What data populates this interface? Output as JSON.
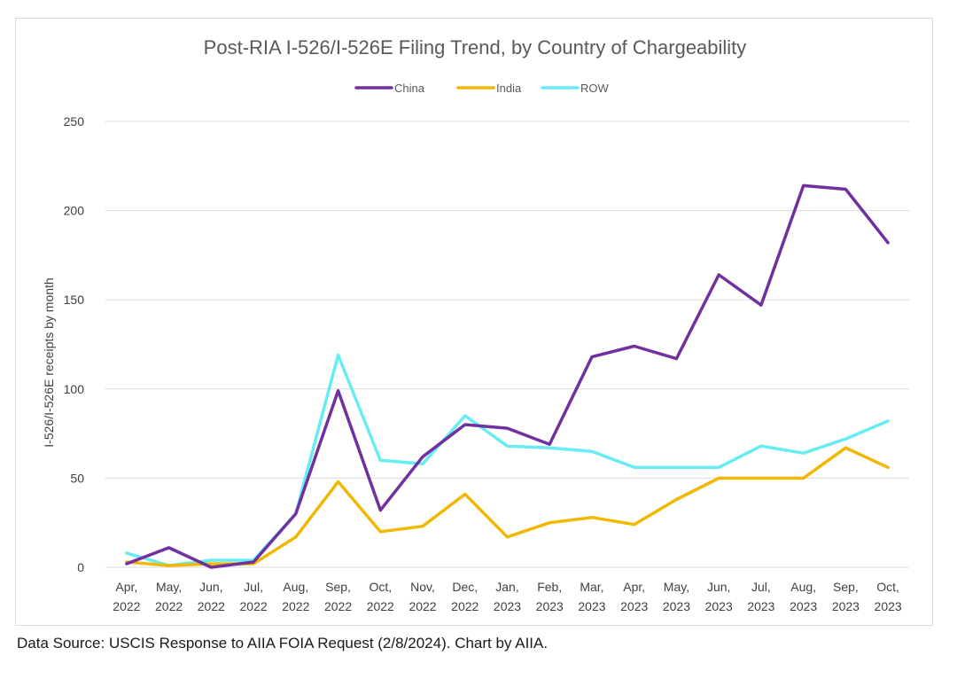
{
  "chart_data": {
    "type": "line",
    "title": "Post-RIA I-526/I-526E Filing Trend, by Country of Chargeability",
    "xlabel": "",
    "ylabel": "I-526/I-526E receipts by month",
    "ylim": [
      0,
      250
    ],
    "yticks": [
      0,
      50,
      100,
      150,
      200,
      250
    ],
    "grid": true,
    "legend_position": "top-center",
    "categories": [
      [
        "Apr,",
        "2022"
      ],
      [
        "May,",
        "2022"
      ],
      [
        "Jun,",
        "2022"
      ],
      [
        "Jul,",
        "2022"
      ],
      [
        "Aug,",
        "2022"
      ],
      [
        "Sep,",
        "2022"
      ],
      [
        "Oct,",
        "2022"
      ],
      [
        "Nov,",
        "2022"
      ],
      [
        "Dec,",
        "2022"
      ],
      [
        "Jan,",
        "2023"
      ],
      [
        "Feb,",
        "2023"
      ],
      [
        "Mar,",
        "2023"
      ],
      [
        "Apr,",
        "2023"
      ],
      [
        "May,",
        "2023"
      ],
      [
        "Jun,",
        "2023"
      ],
      [
        "Jul,",
        "2023"
      ],
      [
        "Aug,",
        "2023"
      ],
      [
        "Sep,",
        "2023"
      ],
      [
        "Oct,",
        "2023"
      ]
    ],
    "series": [
      {
        "name": "China",
        "color": "#7030a0",
        "values": [
          2,
          11,
          0,
          3,
          30,
          99,
          32,
          62,
          80,
          78,
          69,
          118,
          124,
          117,
          164,
          147,
          214,
          212,
          182
        ]
      },
      {
        "name": "India",
        "color": "#f0b800",
        "values": [
          3,
          1,
          2,
          2,
          17,
          48,
          20,
          23,
          41,
          17,
          25,
          28,
          24,
          38,
          50,
          50,
          50,
          67,
          56
        ]
      },
      {
        "name": "ROW",
        "color": "#66ecf2",
        "values": [
          8,
          1,
          4,
          4,
          30,
          119,
          60,
          58,
          85,
          68,
          67,
          65,
          56,
          56,
          56,
          68,
          64,
          72,
          82
        ]
      }
    ]
  },
  "footer": {
    "source": "Data Source: USCIS Response to AIIA FOIA Request (2/8/2024). Chart by AIIA."
  }
}
